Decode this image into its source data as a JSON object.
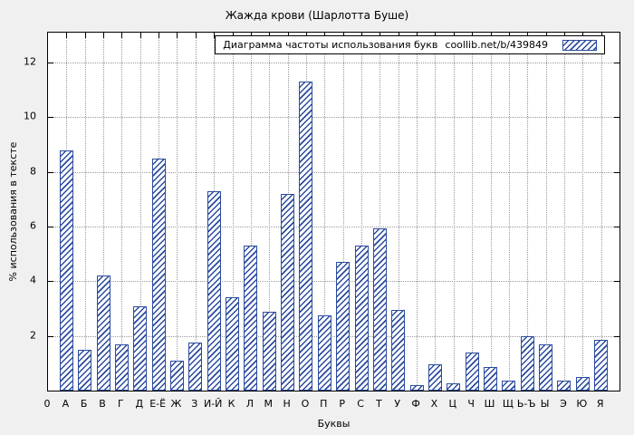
{
  "chart_data": {
    "type": "bar",
    "title": "Жажда крови (Шарлотта Буше)",
    "legend_text": "Диаграмма частоты использования букв",
    "legend_source": "coollib.net/b/439849",
    "xlabel": "Буквы",
    "ylabel": "% использования в тексте",
    "origin_label": "0",
    "categories": [
      "А",
      "Б",
      "В",
      "Г",
      "Д",
      "Е-Ё",
      "Ж",
      "З",
      "И-Й",
      "К",
      "Л",
      "М",
      "Н",
      "О",
      "П",
      "Р",
      "С",
      "Т",
      "У",
      "Ф",
      "Х",
      "Ц",
      "Ч",
      "Ш",
      "Щ",
      "Ь-Ъ",
      "Ы",
      "Э",
      "Ю",
      "Я"
    ],
    "values": [
      8.8,
      1.5,
      4.2,
      1.7,
      3.1,
      8.5,
      1.1,
      1.75,
      7.3,
      3.4,
      5.3,
      2.9,
      7.2,
      11.3,
      2.75,
      4.7,
      5.3,
      5.95,
      2.95,
      0.2,
      0.95,
      0.25,
      1.4,
      0.85,
      0.35,
      2.0,
      1.7,
      0.35,
      0.5,
      1.85
    ],
    "yticks": [
      0,
      2,
      4,
      6,
      8,
      10,
      12
    ],
    "ylim": [
      0,
      13.1
    ],
    "grid": true,
    "legend_position": "top",
    "bar_color": "#2b4b9e",
    "plot_background": "#ffffff",
    "page_background": "#f0f0f0"
  }
}
